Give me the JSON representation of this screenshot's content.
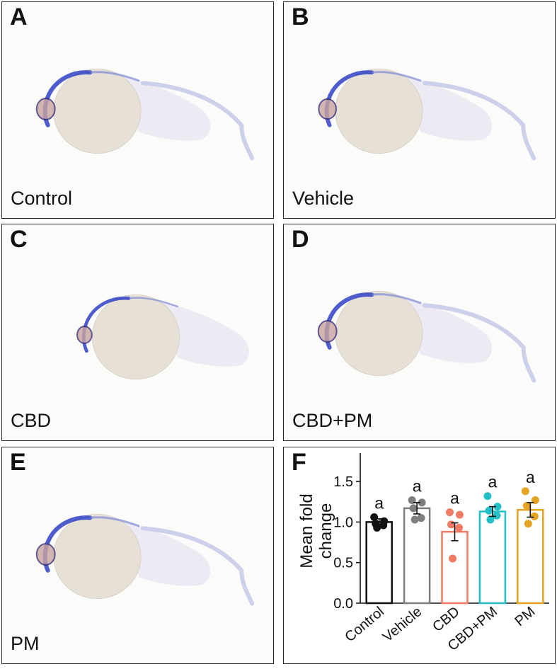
{
  "panels": [
    {
      "letter": "A",
      "caption": "Control"
    },
    {
      "letter": "B",
      "caption": "Vehicle"
    },
    {
      "letter": "C",
      "caption": "CBD"
    },
    {
      "letter": "D",
      "caption": "CBD+PM"
    },
    {
      "letter": "E",
      "caption": "PM"
    },
    {
      "letter": "F",
      "caption": ""
    }
  ],
  "colors": {
    "stain": "#2f3fc4",
    "yolk": "#e6e0d6",
    "body": "#ece8f2"
  },
  "chart_data": {
    "type": "bar",
    "categories": [
      "Control",
      "Vehicle",
      "CBD",
      "CBD+PM",
      "PM"
    ],
    "values": [
      1.0,
      1.17,
      0.88,
      1.13,
      1.15
    ],
    "errors": [
      0.04,
      0.07,
      0.11,
      0.06,
      0.09
    ],
    "points": [
      [
        1.06,
        1.01,
        0.98,
        0.96,
        0.93
      ],
      [
        1.27,
        1.24,
        1.17,
        1.05,
        1.03
      ],
      [
        1.12,
        1.09,
        0.97,
        0.93,
        0.55
      ],
      [
        1.32,
        1.19,
        1.14,
        1.08,
        1.03
      ],
      [
        1.38,
        1.27,
        1.2,
        1.07,
        0.98
      ]
    ],
    "colors": [
      "#111111",
      "#7f7f7f",
      "#f07a63",
      "#23c0c8",
      "#e4a323"
    ],
    "significance": [
      "a",
      "a",
      "a",
      "a",
      "a"
    ],
    "ylabel_lines": [
      "Mean fold",
      "change"
    ],
    "yticks": [
      "0.0",
      "0.5",
      "1.0",
      "1.5"
    ],
    "ylim": [
      0,
      1.85
    ],
    "grid": false,
    "legend": "none"
  }
}
